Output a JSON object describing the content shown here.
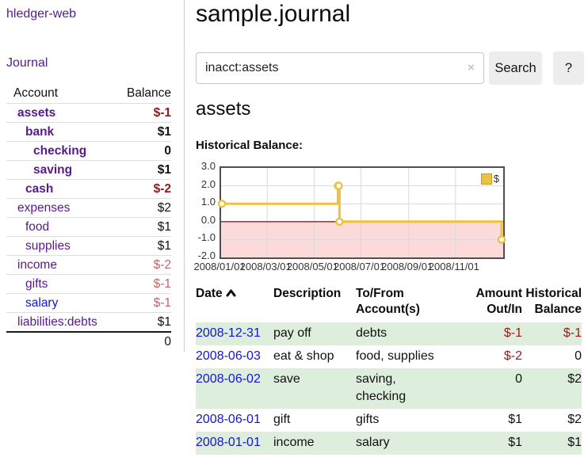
{
  "sidebar": {
    "app_title": "hledger-web",
    "journal_label": "Journal",
    "accounts": {
      "header_account": "Account",
      "header_balance": "Balance",
      "rows": [
        {
          "name": "assets",
          "balance": "$-1",
          "level": 1,
          "selected": true,
          "balance_style": "neg"
        },
        {
          "name": "bank",
          "balance": "$1",
          "level": 2,
          "selected": true,
          "balance_style": ""
        },
        {
          "name": "checking",
          "balance": "0",
          "level": 3,
          "selected": true,
          "balance_style": ""
        },
        {
          "name": "saving",
          "balance": "$1",
          "level": 3,
          "selected": true,
          "balance_style": ""
        },
        {
          "name": "cash",
          "balance": "$-2",
          "level": 2,
          "selected": true,
          "balance_style": "neg"
        },
        {
          "name": "expenses",
          "balance": "$2",
          "level": 1,
          "selected": false,
          "balance_style": ""
        },
        {
          "name": "food",
          "balance": "$1",
          "level": 2,
          "selected": false,
          "balance_style": ""
        },
        {
          "name": "supplies",
          "balance": "$1",
          "level": 2,
          "selected": false,
          "balance_style": ""
        },
        {
          "name": "income",
          "balance": "$-2",
          "level": 1,
          "selected": false,
          "balance_style": "neg-faded"
        },
        {
          "name": "gifts",
          "balance": "$-1",
          "level": 2,
          "selected": false,
          "balance_style": "neg-faded"
        },
        {
          "name": "salary",
          "balance": "$-1",
          "level": 2,
          "selected": false,
          "balance_style": "neg-faded",
          "link_style": "blue"
        },
        {
          "name": "liabilities:debts",
          "balance": "$1",
          "level": 1,
          "selected": false,
          "balance_style": ""
        }
      ],
      "total": "0"
    }
  },
  "main": {
    "title": "sample.journal",
    "search": {
      "value": "inacct:assets",
      "clear_icon": "×",
      "button_label": "Search",
      "help_label": "?"
    },
    "account_heading": "assets",
    "section_heading": "Historical Balance:"
  },
  "chart_data": {
    "type": "line",
    "step": true,
    "title": "Historical Balance:",
    "series": [
      {
        "name": "$",
        "color": "#edc240",
        "points": [
          [
            "2008-01-01",
            1
          ],
          [
            "2008-06-01",
            2
          ],
          [
            "2008-06-02",
            2
          ],
          [
            "2008-06-03",
            0
          ],
          [
            "2008-12-31",
            -1
          ]
        ]
      }
    ],
    "x_ticks": [
      "2008/01/01",
      "2008/03/01",
      "2008/05/01",
      "2008/07/01",
      "2008/09/01",
      "2008/11/01"
    ],
    "y_ticks": [
      3.0,
      2.0,
      1.0,
      0.0,
      -1.0,
      -2.0
    ],
    "ylim": [
      -2,
      3
    ],
    "xlim": [
      "2008-01-01",
      "2009-01-02"
    ],
    "grid": true,
    "legend_position": "top-right",
    "negative_region_color": "#fcdada",
    "zero_line_color": "#8b2020",
    "gridline_color": "#d9d9d9"
  },
  "register_table": {
    "columns": [
      {
        "lines": [
          "Date"
        ],
        "align": "left",
        "sorted_ascending": true
      },
      {
        "lines": [
          "Description"
        ],
        "align": "left"
      },
      {
        "lines": [
          "To/From",
          "Account(s)"
        ],
        "align": "left"
      },
      {
        "lines": [
          "Amount",
          "Out/In"
        ],
        "align": "right"
      },
      {
        "lines": [
          "Historical",
          "Balance"
        ],
        "align": "right"
      }
    ],
    "rows": [
      {
        "date": "2008-12-31",
        "description": "pay off",
        "accounts": "debts",
        "amount": "$-1",
        "amount_negative": true,
        "balance": "$-1",
        "balance_negative": true
      },
      {
        "date": "2008-06-03",
        "description": "eat & shop",
        "accounts": "food, supplies",
        "amount": "$-2",
        "amount_negative": true,
        "balance": "0",
        "balance_negative": false
      },
      {
        "date": "2008-06-02",
        "description": "save",
        "accounts": "saving, checking",
        "amount": "0",
        "amount_negative": false,
        "balance": "$2",
        "balance_negative": false
      },
      {
        "date": "2008-06-01",
        "description": "gift",
        "accounts": "gifts",
        "amount": "$1",
        "amount_negative": false,
        "balance": "$2",
        "balance_negative": false
      },
      {
        "date": "2008-01-01",
        "description": "income",
        "accounts": "salary",
        "amount": "$1",
        "amount_negative": false,
        "balance": "$1",
        "balance_negative": false
      }
    ]
  },
  "colors": {
    "link_purple": "#551a8b",
    "link_blue": "#1414d6",
    "negative_strong": "#951717",
    "negative_faded": "#c06868",
    "row_green": "#ddeedd",
    "series_gold": "#edc240"
  }
}
